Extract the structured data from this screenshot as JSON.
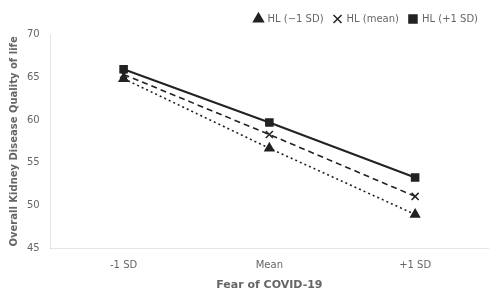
{
  "chart_data": {
    "type": "line",
    "categories": [
      "-1 SD",
      "Mean",
      "+1 SD"
    ],
    "series": [
      {
        "name": "HL (−1 SD)",
        "color": "#222222",
        "values": [
          64.8,
          56.7,
          49.0
        ],
        "marker": "triangle",
        "line_style": "dotted"
      },
      {
        "name": "HL (mean)",
        "color": "#222222",
        "values": [
          65.3,
          58.3,
          51.1
        ],
        "marker": "x",
        "line_style": "dashed"
      },
      {
        "name": "HL (+1 SD)",
        "color": "#222222",
        "values": [
          65.9,
          59.7,
          53.3
        ],
        "marker": "square",
        "line_style": "solid"
      }
    ],
    "xlabel": "Fear of COVID-19",
    "ylabel": "Overall Kidney Disease Quality of life",
    "ylim": [
      45,
      70
    ],
    "yticks": [
      45,
      50,
      55,
      60,
      65,
      70
    ],
    "grid": false,
    "legend": "upper right"
  }
}
